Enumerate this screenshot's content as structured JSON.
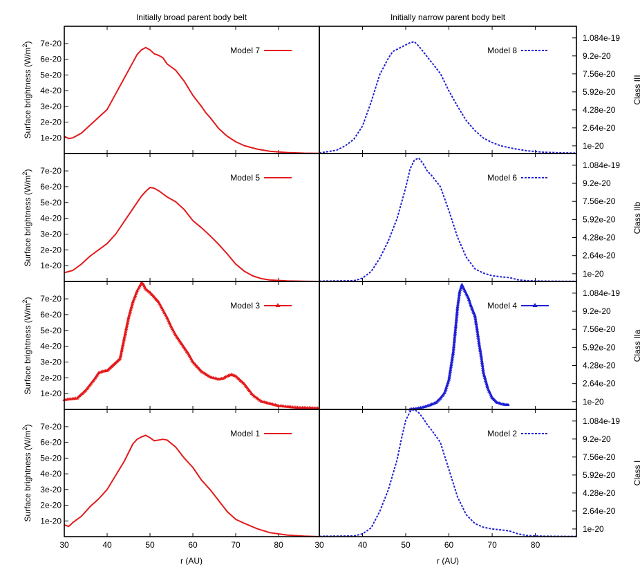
{
  "figure": {
    "column_titles": [
      "Initially broad parent body belt",
      "Initially narrow parent body belt"
    ],
    "row_labels": [
      "Class III",
      "Class IIb",
      "Class IIa",
      "Class I"
    ],
    "ylabel_left": "Surface brightness (W/m",
    "ylabel_left_sup": "2",
    "ylabel_left_close": ")",
    "xlabel": "r (AU)",
    "left_yticks": [
      "1e-20",
      "2e-20",
      "3e-20",
      "4e-20",
      "5e-20",
      "6e-20",
      "7e-20"
    ],
    "right_yticks": [
      "1e-20",
      "2.64e-20",
      "4.28e-20",
      "5.92e-20",
      "7.56e-20",
      "9.2e-20",
      "1.084e-19"
    ],
    "xticks_left": [
      "30",
      "40",
      "50",
      "60",
      "70",
      "80"
    ],
    "xticks_right": [
      "30",
      "40",
      "50",
      "60",
      "70",
      "80"
    ],
    "colors": {
      "broad": "#e31a1c",
      "narrow": "#1f1fd6"
    }
  },
  "chart_data": [
    {
      "type": "line",
      "name": "Model 7",
      "row": 0,
      "col": 0,
      "style": "solid",
      "xlim": [
        30,
        89.5
      ],
      "ylim": [
        0,
        8.1e-20
      ],
      "grid": false,
      "legend": "top-right",
      "x": [
        30,
        31,
        32,
        34,
        36,
        38,
        40,
        42,
        44,
        46,
        47,
        48,
        49,
        50,
        51,
        52,
        53,
        54,
        56,
        58,
        60,
        62,
        63,
        64,
        66,
        68,
        70,
        72,
        75,
        78,
        82,
        86,
        89.5
      ],
      "y": [
        1.1e-20,
        9.5e-21,
        1e-20,
        1.3e-20,
        1.8e-20,
        2.3e-20,
        2.8e-20,
        3.8e-20,
        4.8e-20,
        5.8e-20,
        6.3e-20,
        6.6e-20,
        6.75e-20,
        6.6e-20,
        6.35e-20,
        6.25e-20,
        6.1e-20,
        5.7e-20,
        5.3e-20,
        4.6e-20,
        3.7e-20,
        3e-20,
        2.6e-20,
        2.3e-20,
        1.6e-20,
        1.1e-20,
        7.5e-21,
        5e-21,
        2.8e-21,
        1.4e-21,
        6e-22,
        2e-22,
        1e-22
      ]
    },
    {
      "type": "line",
      "name": "Model 8",
      "row": 0,
      "col": 1,
      "style": "dashed",
      "xlim": [
        30,
        89.5
      ],
      "ylim": [
        3e-21,
        1.19e-19
      ],
      "grid": false,
      "legend": "top-right",
      "x": [
        30,
        34,
        36,
        38,
        40,
        42,
        44,
        46,
        47,
        48,
        49,
        50,
        51,
        52,
        53,
        54,
        55,
        56,
        58,
        60,
        62,
        64,
        66,
        68,
        70,
        72,
        75,
        78,
        82,
        86,
        89.5
      ],
      "y": [
        3.5e-21,
        6e-21,
        1e-20,
        1.6e-20,
        2.8e-20,
        5e-20,
        7.5e-20,
        9e-20,
        9.6e-20,
        9.8e-20,
        1e-19,
        1.02e-19,
        1.04e-19,
        1.05e-19,
        1.01e-19,
        9.6e-20,
        9.1e-20,
        8.6e-20,
        7.6e-20,
        6e-20,
        4.6e-20,
        3.3e-20,
        2.4e-20,
        1.7e-20,
        1.3e-20,
        1e-20,
        7.5e-21,
        5.5e-21,
        4.2e-21,
        3.6e-21,
        3.4e-21
      ]
    },
    {
      "type": "line",
      "name": "Model 5",
      "row": 1,
      "col": 0,
      "style": "solid",
      "xlim": [
        30,
        89.5
      ],
      "ylim": [
        0,
        8.1e-20
      ],
      "grid": false,
      "legend": "top-right",
      "x": [
        30,
        32,
        34,
        36,
        38,
        40,
        42,
        44,
        46,
        48,
        49,
        50,
        51,
        52,
        53,
        54,
        56,
        58,
        60,
        62,
        64,
        66,
        68,
        70,
        72,
        74,
        76,
        78,
        82,
        86,
        89.5
      ],
      "y": [
        5.5e-21,
        7e-21,
        1.1e-20,
        1.6e-20,
        2e-20,
        2.4e-20,
        3e-20,
        3.8e-20,
        4.6e-20,
        5.4e-20,
        5.7e-20,
        5.95e-20,
        5.9e-20,
        5.75e-20,
        5.55e-20,
        5.35e-20,
        5.05e-20,
        4.55e-20,
        3.85e-20,
        3.4e-20,
        2.9e-20,
        2.35e-20,
        1.75e-20,
        1.1e-20,
        6.5e-21,
        3.5e-21,
        1.8e-21,
        9e-22,
        3e-22,
        1e-22,
        0.0
      ]
    },
    {
      "type": "line",
      "name": "Model 6",
      "row": 1,
      "col": 1,
      "style": "dashed",
      "xlim": [
        30,
        89.5
      ],
      "ylim": [
        3e-21,
        1.19e-19
      ],
      "grid": false,
      "legend": "top-right",
      "x": [
        30,
        38,
        40,
        42,
        44,
        46,
        48,
        50,
        51,
        52,
        53,
        54,
        55,
        56,
        57,
        58,
        60,
        62,
        64,
        66,
        68,
        70,
        72,
        74,
        76,
        78,
        82,
        86,
        89.5
      ],
      "y": [
        3.3e-21,
        3.6e-21,
        6e-21,
        1.2e-20,
        2.4e-20,
        4e-20,
        6e-20,
        8.8e-20,
        1.05e-19,
        1.13e-19,
        1.15e-19,
        1.1e-19,
        1.03e-19,
        9.9e-20,
        9.4e-20,
        8.9e-20,
        6.7e-20,
        4.3e-20,
        2.5e-20,
        1.45e-20,
        1.05e-20,
        8.2e-21,
        7.2e-21,
        6.5e-21,
        4.5e-21,
        3.6e-21,
        3.3e-21,
        3.2e-21,
        3.2e-21
      ]
    },
    {
      "type": "line",
      "name": "Model 3",
      "row": 2,
      "col": 0,
      "style": "points",
      "xlim": [
        30,
        89.5
      ],
      "ylim": [
        0,
        8.1e-20
      ],
      "grid": false,
      "legend": "top-right",
      "x": [
        30,
        33,
        35,
        37,
        38,
        39,
        40,
        41,
        42,
        43,
        44,
        45,
        46,
        47,
        48,
        48.5,
        49,
        50,
        51,
        52,
        53,
        54,
        55,
        56,
        57,
        58,
        59,
        60,
        62,
        64,
        66,
        67,
        68,
        69,
        70,
        72,
        74,
        76,
        80,
        84,
        89.5
      ],
      "y": [
        6e-21,
        7e-21,
        1.2e-20,
        1.9e-20,
        2.3e-20,
        2.4e-20,
        2.45e-20,
        2.7e-20,
        2.95e-20,
        3.2e-20,
        4.5e-20,
        5.8e-20,
        6.8e-20,
        7.5e-20,
        8e-20,
        7.9e-20,
        7.6e-20,
        7.4e-20,
        7.1e-20,
        6.8e-20,
        6.3e-20,
        5.8e-20,
        5.2e-20,
        4.7e-20,
        4.3e-20,
        3.9e-20,
        3.5e-20,
        3e-20,
        2.4e-20,
        2.05e-20,
        1.9e-20,
        1.95e-20,
        2.1e-20,
        2.2e-20,
        2.1e-20,
        1.6e-20,
        9e-21,
        5e-21,
        2.2e-21,
        1.2e-21,
        6e-22
      ]
    },
    {
      "type": "line",
      "name": "Model 4",
      "row": 2,
      "col": 1,
      "style": "points",
      "xlim": [
        30,
        89.5
      ],
      "ylim": [
        3e-21,
        1.19e-19
      ],
      "grid": false,
      "legend": "top-right",
      "x": [
        51,
        53,
        55,
        57,
        58,
        59,
        60,
        61,
        61.5,
        62,
        62.5,
        63,
        63.5,
        64,
        64.5,
        65,
        65.5,
        66,
        66.5,
        67,
        67.5,
        68,
        69,
        70,
        71,
        72,
        73,
        74
      ],
      "y": [
        3e-21,
        4e-21,
        6e-21,
        9e-21,
        1.3e-20,
        1.8e-20,
        3e-20,
        5.5e-20,
        7.5e-20,
        9.6e-20,
        1.1e-19,
        1.16e-19,
        1.12e-19,
        1.08e-19,
        1.04e-19,
        9.8e-20,
        9.3e-20,
        8.8e-20,
        7.6e-20,
        6.2e-20,
        5e-20,
        3.6e-20,
        2.2e-20,
        1.35e-20,
        9.5e-21,
        8e-21,
        7.2e-21,
        7e-21
      ]
    },
    {
      "type": "line",
      "name": "Model 1",
      "row": 3,
      "col": 0,
      "style": "solid",
      "xlim": [
        30,
        89.5
      ],
      "ylim": [
        0,
        8.1e-20
      ],
      "grid": false,
      "legend": "top-right",
      "x": [
        30,
        31,
        32,
        34,
        36,
        38,
        40,
        42,
        44,
        46,
        47,
        48,
        49,
        50,
        51,
        52,
        53,
        54,
        56,
        58,
        60,
        62,
        64,
        66,
        68,
        70,
        72,
        75,
        78,
        82,
        86,
        89.5
      ],
      "y": [
        7.5e-21,
        6.5e-21,
        9e-21,
        1.3e-20,
        1.9e-20,
        2.4e-20,
        3e-20,
        3.9e-20,
        4.8e-20,
        5.9e-20,
        6.2e-20,
        6.35e-20,
        6.45e-20,
        6.3e-20,
        6.1e-20,
        6.15e-20,
        6.2e-20,
        6.15e-20,
        5.7e-20,
        5e-20,
        4.4e-20,
        3.6e-20,
        3e-20,
        2.3e-20,
        1.6e-20,
        1.1e-20,
        8.5e-21,
        5e-21,
        2.5e-21,
        1e-21,
        3e-22,
        0.0
      ]
    },
    {
      "type": "line",
      "name": "Model 2",
      "row": 3,
      "col": 1,
      "style": "dashed",
      "xlim": [
        30,
        89.5
      ],
      "ylim": [
        3e-21,
        1.19e-19
      ],
      "grid": false,
      "legend": "top-right",
      "x": [
        30,
        38,
        40,
        42,
        44,
        46,
        48,
        49,
        50,
        51,
        52,
        53,
        54,
        55,
        56,
        58,
        60,
        62,
        64,
        66,
        68,
        70,
        72,
        74,
        76,
        78,
        82,
        86,
        89.5
      ],
      "y": [
        3.3e-21,
        3.6e-21,
        5.5e-21,
        1.1e-20,
        2.6e-20,
        4.6e-20,
        7.3e-20,
        9.2e-20,
        1.09e-19,
        1.17e-19,
        1.19e-19,
        1.16e-19,
        1.11e-19,
        1.05e-19,
        1e-19,
        8.9e-20,
        6.4e-20,
        3.9e-20,
        2.3e-20,
        1.5e-20,
        1.15e-20,
        1e-20,
        9.2e-21,
        8.2e-21,
        5.5e-21,
        4e-21,
        3.4e-21,
        3.3e-21,
        3.2e-21
      ]
    }
  ]
}
